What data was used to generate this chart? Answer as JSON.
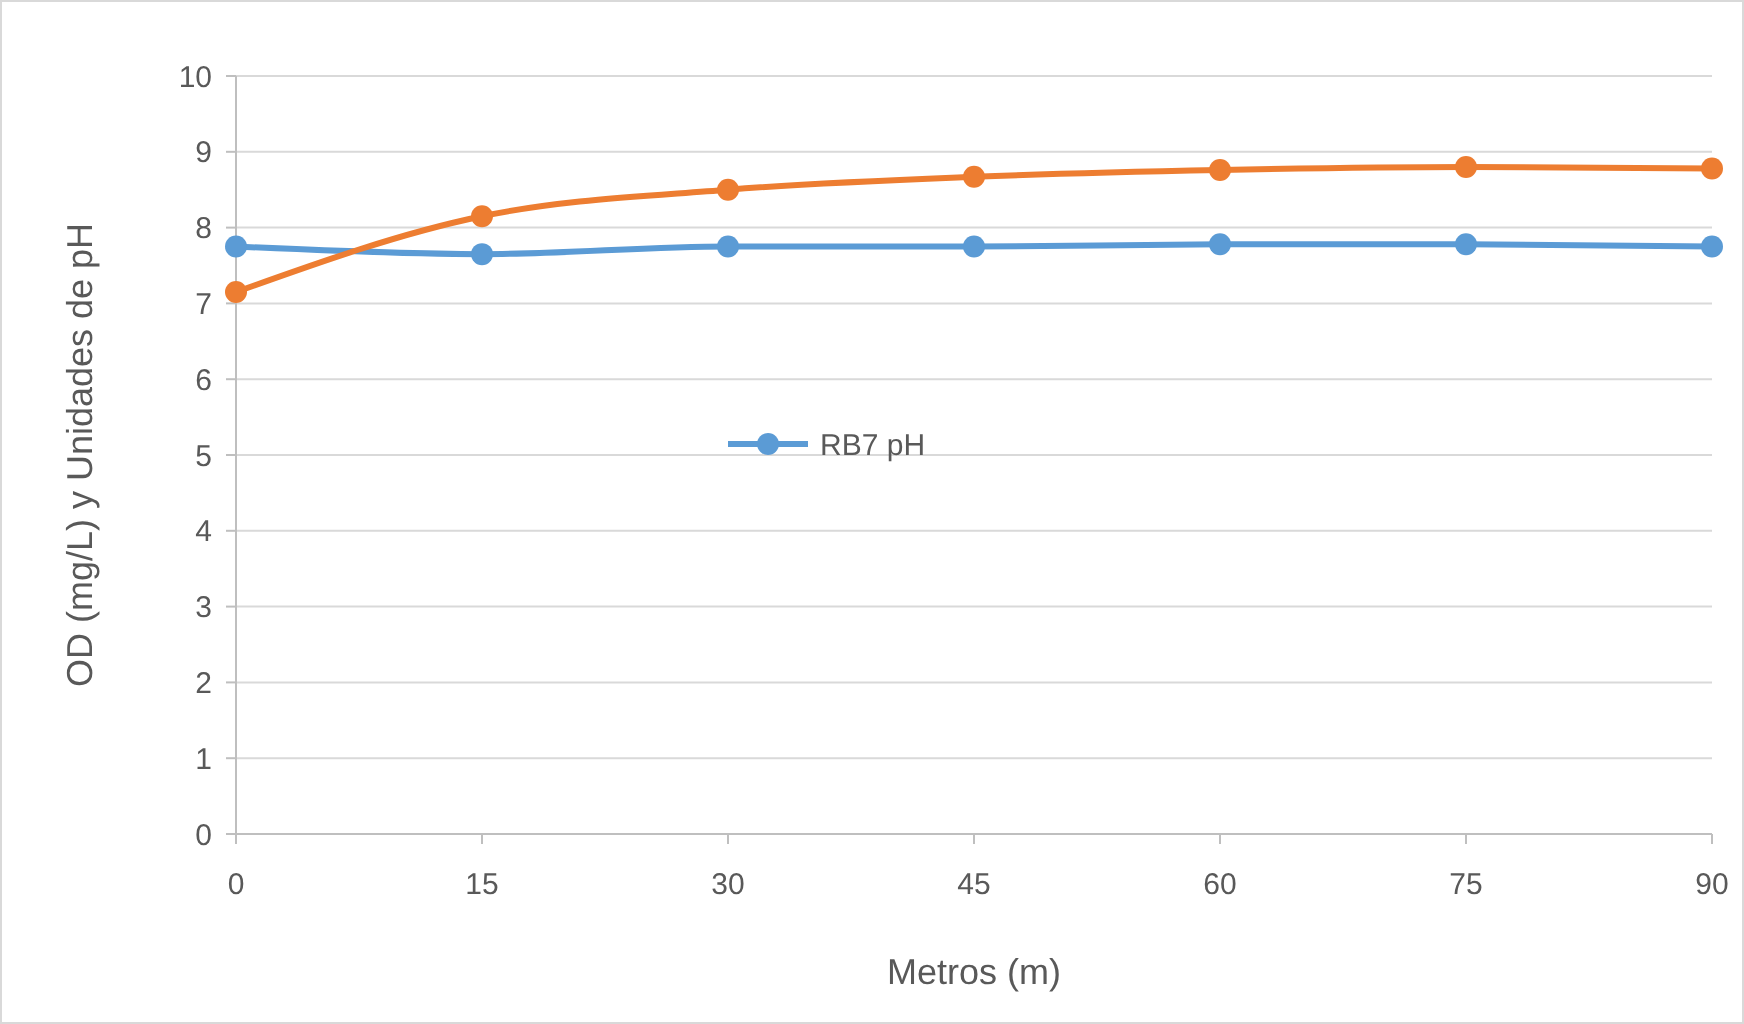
{
  "chart_data": {
    "type": "line",
    "xlabel": "Metros (m)",
    "ylabel": "OD (mg/L) y Unidades de pH",
    "x": [
      0,
      15,
      30,
      45,
      60,
      75,
      90
    ],
    "series": [
      {
        "name": "RB7 pH",
        "color": "#5b9bd5",
        "values": [
          7.75,
          7.65,
          7.75,
          7.75,
          7.78,
          7.78,
          7.75
        ]
      },
      {
        "color": "#ed7d31",
        "values": [
          7.15,
          8.15,
          8.5,
          8.67,
          8.76,
          8.8,
          8.78
        ]
      }
    ],
    "xlim": [
      0,
      90
    ],
    "xticks": [
      0,
      15,
      30,
      45,
      60,
      75,
      90
    ],
    "ylim": [
      0,
      10
    ],
    "yticks": [
      0,
      1,
      2,
      3,
      4,
      5,
      6,
      7,
      8,
      9,
      10
    ],
    "grid": "y",
    "legend": "center",
    "marker": "circle",
    "line_style": "solid"
  }
}
